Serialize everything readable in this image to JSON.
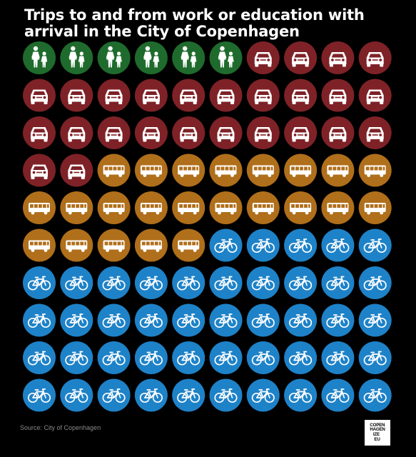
{
  "title": "Trips to and from work or education with arrival in the City of Copenhagen",
  "source": "Source: City of Copenhagen",
  "logo_text": "COPENHAGENIZE.EU",
  "colors": {
    "walk": "#1f6b2d",
    "car": "#7e2227",
    "bus": "#b06f1b",
    "bike": "#1e82c8",
    "icon": "#ffffff",
    "background": "#000000"
  },
  "chart_data": {
    "type": "table",
    "title": "Trips to and from work or education with arrival in the City of Copenhagen",
    "unit": "icons out of 100",
    "rows": 10,
    "columns": 10,
    "categories": [
      "Walking",
      "Car",
      "Public transport",
      "Bicycle"
    ],
    "values": [
      6,
      26,
      23,
      45
    ],
    "icons": [
      "walk-icon",
      "car-icon",
      "bus-icon",
      "bike-icon"
    ]
  }
}
